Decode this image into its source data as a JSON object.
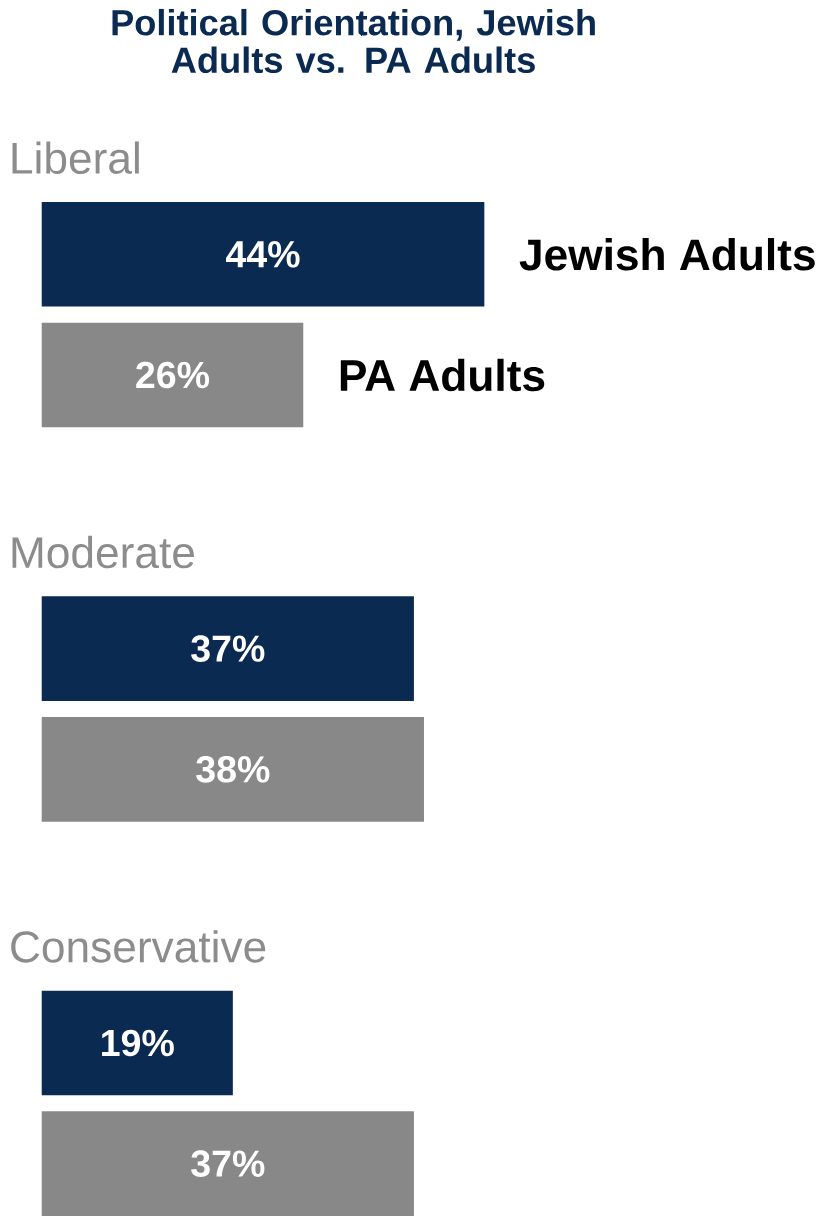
{
  "chart_data": {
    "type": "bar",
    "orientation": "horizontal",
    "title": "Political Orientation, Jewish Adults vs. PA Adults",
    "categories": [
      "Liberal",
      "Moderate",
      "Conservative"
    ],
    "series": [
      {
        "name": "Jewish Adults",
        "color": "#0b2a52",
        "values": [
          44,
          37,
          19
        ],
        "value_labels": [
          "44%",
          "37%",
          "19%"
        ]
      },
      {
        "name": "PA Adults",
        "color": "#888888",
        "values": [
          26,
          38,
          37
        ],
        "value_labels": [
          "26%",
          "38%",
          "37%"
        ]
      }
    ]
  }
}
